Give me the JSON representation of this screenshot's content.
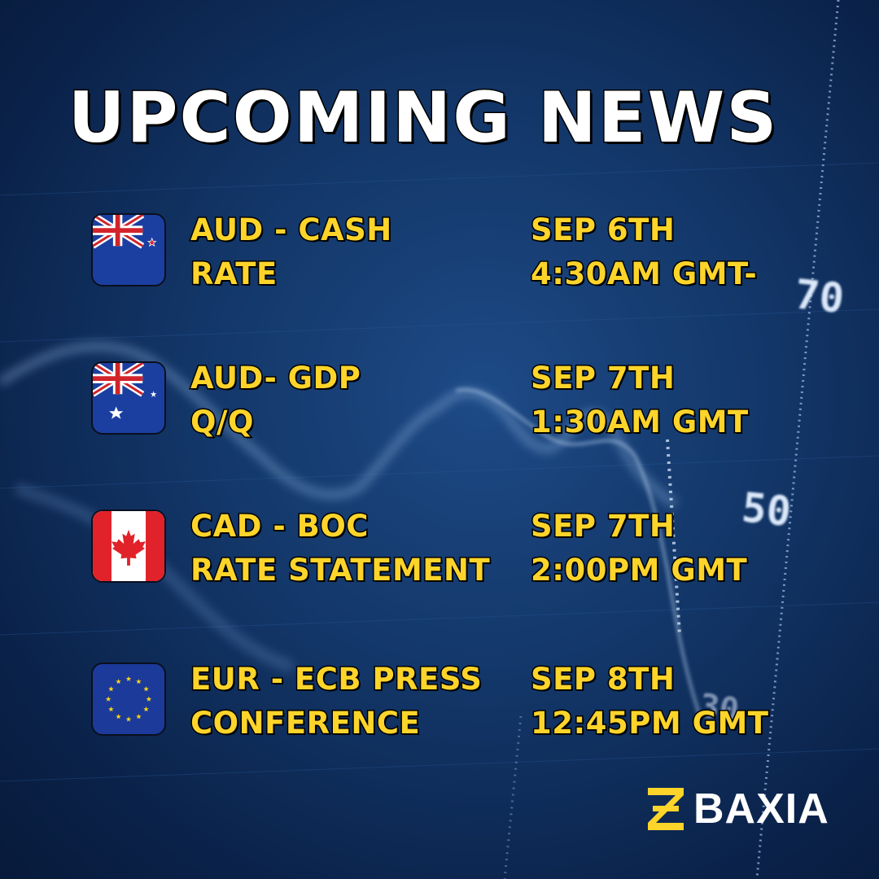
{
  "title": "UPCOMING NEWS",
  "events": [
    {
      "flag": "new-zealand-flag",
      "name_line1": "AUD - CASH",
      "name_line2": "RATE",
      "date": "SEP 6TH",
      "time": "4:30AM GMT-"
    },
    {
      "flag": "australia-flag",
      "name_line1": "AUD- GDP",
      "name_line2": "Q/Q",
      "date": "SEP 7TH",
      "time": "1:30AM GMT"
    },
    {
      "flag": "canada-flag",
      "name_line1": "CAD - BOC",
      "name_line2": "RATE STATEMENT",
      "date": "SEP 7TH",
      "time": "2:00PM GMT"
    },
    {
      "flag": "european-union-flag",
      "name_line1": "EUR - ECB PRESS",
      "name_line2": "CONFERENCE",
      "date": "SEP 8TH",
      "time": "12:45PM GMT"
    }
  ],
  "background_labels": [
    "70",
    "50",
    "30"
  ],
  "brand": {
    "name": "BAXIA",
    "accent": "#fdd42a"
  },
  "colors": {
    "title": "#ffffff",
    "event_text": "#fdd42a",
    "background": "#123566"
  }
}
